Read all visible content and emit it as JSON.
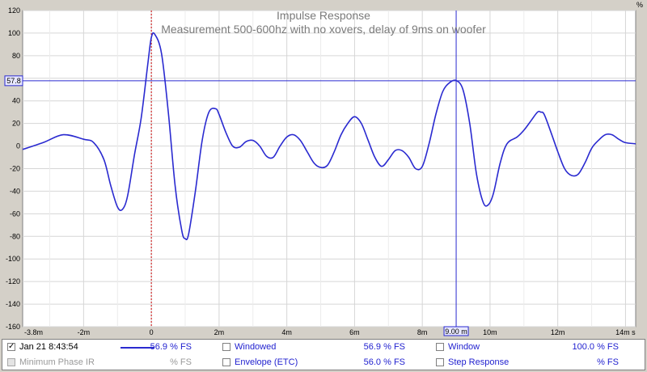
{
  "chart_data": {
    "type": "line",
    "title": "Impulse Response",
    "subtitle": "Measurement 500-600hz with no xovers, delay of 9ms on woofer",
    "xlabel": "",
    "ylabel": "%",
    "xlim": [
      -3.8,
      14.3
    ],
    "ylim": [
      -160,
      120
    ],
    "yticks": [
      "120",
      "100",
      "80",
      "60",
      "40",
      "20",
      "0",
      "-20",
      "-40",
      "-60",
      "-80",
      "-100",
      "-120",
      "-140",
      "-160"
    ],
    "xticks": [
      "-3.8m",
      "-2m",
      "0",
      "2m",
      "4m",
      "6m",
      "8m",
      "10m",
      "12m",
      "14m s"
    ],
    "grid": true,
    "cursor": {
      "x": 9.0,
      "y": 57.8,
      "x_label": "9.00 m",
      "y_label": "57.8"
    },
    "reference_marker_x": 0,
    "series": [
      {
        "x": [
          -3.8,
          -3.2,
          -2.6,
          -2.0,
          -1.7,
          -1.4,
          -1.2,
          -1.0,
          -0.85,
          -0.7,
          -0.5,
          -0.3,
          -0.1,
          0.0,
          0.1,
          0.3,
          0.5,
          0.7,
          0.9,
          1.0,
          1.1,
          1.3,
          1.5,
          1.7,
          1.9,
          2.0,
          2.2,
          2.4,
          2.6,
          2.8,
          3.0,
          3.2,
          3.4,
          3.6,
          3.8,
          4.0,
          4.2,
          4.4,
          4.6,
          4.8,
          5.0,
          5.2,
          5.4,
          5.6,
          5.8,
          6.0,
          6.2,
          6.4,
          6.6,
          6.8,
          7.0,
          7.2,
          7.4,
          7.6,
          7.8,
          8.0,
          8.2,
          8.4,
          8.6,
          8.8,
          9.0,
          9.2,
          9.4,
          9.6,
          9.8,
          9.95,
          10.1,
          10.3,
          10.5,
          10.8,
          11.0,
          11.2,
          11.4,
          11.5,
          11.6,
          11.8,
          12.0,
          12.2,
          12.4,
          12.6,
          12.8,
          13.0,
          13.2,
          13.4,
          13.6,
          13.8,
          14.0,
          14.3
        ],
        "y": [
          -3,
          3,
          10,
          6,
          3,
          -12,
          -35,
          -54,
          -56,
          -44,
          -8,
          25,
          74,
          96,
          99,
          82,
          30,
          -35,
          -75,
          -82,
          -78,
          -40,
          5,
          30,
          33,
          28,
          12,
          0,
          -1,
          4,
          5,
          0,
          -9,
          -10,
          0,
          8,
          10,
          5,
          -5,
          -15,
          -19,
          -17,
          -5,
          10,
          20,
          26,
          20,
          5,
          -10,
          -18,
          -12,
          -4,
          -4,
          -10,
          -20,
          -18,
          2,
          28,
          48,
          56,
          58,
          50,
          20,
          -25,
          -50,
          -52,
          -42,
          -15,
          2,
          8,
          14,
          22,
          30,
          30,
          28,
          12,
          -5,
          -20,
          -26,
          -25,
          -15,
          -2,
          5,
          10,
          10,
          6,
          3,
          2
        ]
      }
    ]
  },
  "legend": {
    "rows": [
      [
        {
          "checked": "✓",
          "label": "Jan 21 8:43:54",
          "value": "56.9 % FS",
          "line": true
        },
        {
          "label": "Windowed",
          "value": "56.9 % FS"
        },
        {
          "label": "Window",
          "value": "100.0 % FS"
        }
      ],
      [
        {
          "label": "Minimum Phase IR",
          "value": "% FS",
          "disabled": true
        },
        {
          "label": "Envelope (ETC)",
          "value": "56.0 % FS"
        },
        {
          "label": "Step Response",
          "value": "% FS"
        }
      ]
    ]
  },
  "colors": {
    "trace": "#2a2ad0",
    "cursor": "#2a2ad0",
    "marker": "#cc0000",
    "grid": "#d6d6d6",
    "plot_bg": "#ffffff",
    "title": "#7a7a7a"
  }
}
